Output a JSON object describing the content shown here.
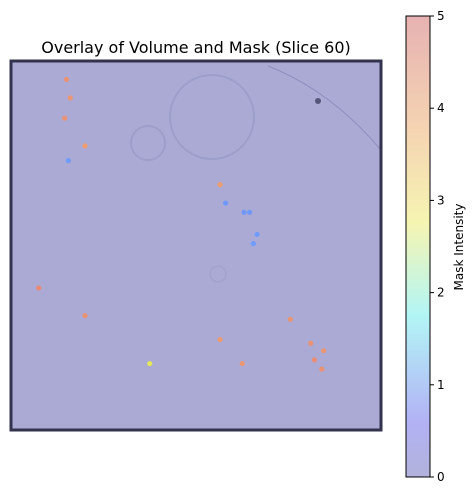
{
  "chart_data": {
    "type": "heatmap",
    "title": "Overlay of Volume and Mask (Slice 60)",
    "colorbar": {
      "label": "Mask Intensity",
      "range": [
        0,
        5
      ],
      "ticks": [
        "0",
        "1",
        "2",
        "3",
        "4",
        "5"
      ],
      "colormap": "jet",
      "alpha": 0.3
    },
    "background_color": "#aaaad4",
    "frame_color": "#33334d",
    "mask_points": [
      {
        "x": 0.15,
        "y": 0.05,
        "value": 4.6
      },
      {
        "x": 0.16,
        "y": 0.1,
        "value": 4.5
      },
      {
        "x": 0.145,
        "y": 0.155,
        "value": 4.6
      },
      {
        "x": 0.2,
        "y": 0.23,
        "value": 4.3
      },
      {
        "x": 0.155,
        "y": 0.27,
        "value": 0.9
      },
      {
        "x": 0.565,
        "y": 0.335,
        "value": 4.3
      },
      {
        "x": 0.58,
        "y": 0.385,
        "value": 0.8
      },
      {
        "x": 0.63,
        "y": 0.41,
        "value": 0.8
      },
      {
        "x": 0.645,
        "y": 0.41,
        "value": 0.8
      },
      {
        "x": 0.665,
        "y": 0.47,
        "value": 0.9
      },
      {
        "x": 0.655,
        "y": 0.495,
        "value": 0.9
      },
      {
        "x": 0.075,
        "y": 0.615,
        "value": 4.8
      },
      {
        "x": 0.2,
        "y": 0.69,
        "value": 4.6
      },
      {
        "x": 0.755,
        "y": 0.7,
        "value": 4.5
      },
      {
        "x": 0.565,
        "y": 0.755,
        "value": 4.4
      },
      {
        "x": 0.81,
        "y": 0.765,
        "value": 4.6
      },
      {
        "x": 0.845,
        "y": 0.785,
        "value": 4.5
      },
      {
        "x": 0.82,
        "y": 0.81,
        "value": 4.7
      },
      {
        "x": 0.375,
        "y": 0.82,
        "value": 3.0
      },
      {
        "x": 0.625,
        "y": 0.82,
        "value": 4.5
      },
      {
        "x": 0.84,
        "y": 0.835,
        "value": 4.6
      }
    ]
  }
}
